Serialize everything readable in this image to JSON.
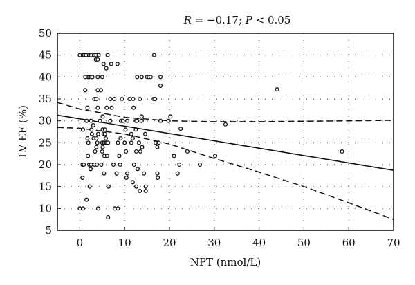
{
  "chart_data": {
    "type": "scatter",
    "title": {
      "r_symbol": "R",
      "r_text": " = −0.17; ",
      "p_symbol": "P",
      "p_text": " < 0.05"
    },
    "xlabel": "NPT (nmol/L)",
    "ylabel": "LV EF (%)",
    "xlim": [
      -5,
      70
    ],
    "ylim": [
      5,
      50
    ],
    "xticks": [
      0,
      10,
      20,
      30,
      40,
      50,
      60,
      70
    ],
    "yticks": [
      5,
      10,
      15,
      20,
      25,
      30,
      35,
      40,
      45,
      50
    ],
    "grid": true,
    "points": [
      [
        0,
        45
      ],
      [
        0.7,
        45
      ],
      [
        1,
        45
      ],
      [
        1.4,
        45
      ],
      [
        2.1,
        45
      ],
      [
        2.5,
        45
      ],
      [
        3.3,
        45
      ],
      [
        3.7,
        45
      ],
      [
        4.2,
        45
      ],
      [
        6.2,
        45
      ],
      [
        16.6,
        45
      ],
      [
        3.6,
        44
      ],
      [
        4,
        44
      ],
      [
        5.3,
        43
      ],
      [
        7,
        43
      ],
      [
        8.4,
        43
      ],
      [
        5.9,
        42
      ],
      [
        1.2,
        40
      ],
      [
        1.8,
        40
      ],
      [
        2.1,
        40
      ],
      [
        2.5,
        40
      ],
      [
        2.8,
        40
      ],
      [
        4,
        40
      ],
      [
        5,
        40
      ],
      [
        12.8,
        40
      ],
      [
        13.8,
        40
      ],
      [
        15,
        40
      ],
      [
        15.4,
        40
      ],
      [
        15.8,
        40
      ],
      [
        18,
        40
      ],
      [
        18,
        38
      ],
      [
        44,
        37.2
      ],
      [
        1.2,
        37
      ],
      [
        4,
        37
      ],
      [
        4.7,
        37
      ],
      [
        3.3,
        35
      ],
      [
        3.7,
        35
      ],
      [
        6.8,
        35
      ],
      [
        7.7,
        35
      ],
      [
        9.4,
        35
      ],
      [
        11.1,
        35
      ],
      [
        11.9,
        35
      ],
      [
        13.4,
        35
      ],
      [
        16.5,
        35
      ],
      [
        16.8,
        35
      ],
      [
        1.7,
        33
      ],
      [
        4,
        33
      ],
      [
        6,
        33
      ],
      [
        7.1,
        33
      ],
      [
        12,
        33
      ],
      [
        5.1,
        31
      ],
      [
        13.8,
        31
      ],
      [
        20.2,
        31
      ],
      [
        1.5,
        30
      ],
      [
        2.5,
        30
      ],
      [
        4.5,
        30
      ],
      [
        6.8,
        30
      ],
      [
        9.2,
        30
      ],
      [
        9.6,
        30
      ],
      [
        10.6,
        30
      ],
      [
        12.5,
        30
      ],
      [
        12.8,
        30
      ],
      [
        13.8,
        30
      ],
      [
        18,
        30
      ],
      [
        19.8,
        30
      ],
      [
        3,
        29
      ],
      [
        32.5,
        29.2
      ],
      [
        0.7,
        28
      ],
      [
        2.6,
        28
      ],
      [
        5.1,
        28
      ],
      [
        5.6,
        28
      ],
      [
        10.2,
        28
      ],
      [
        12.5,
        28
      ],
      [
        22.5,
        28.2
      ],
      [
        2.7,
        27
      ],
      [
        4.1,
        27
      ],
      [
        5.3,
        27
      ],
      [
        5.6,
        27
      ],
      [
        11.5,
        27
      ],
      [
        14.6,
        27
      ],
      [
        1.7,
        26
      ],
      [
        3.1,
        26
      ],
      [
        3.7,
        26
      ],
      [
        5.8,
        26
      ],
      [
        9.1,
        26
      ],
      [
        11.8,
        26
      ],
      [
        1.9,
        25
      ],
      [
        3.9,
        25
      ],
      [
        5,
        25
      ],
      [
        5.3,
        25
      ],
      [
        5.5,
        25
      ],
      [
        5.8,
        25
      ],
      [
        6,
        25
      ],
      [
        6.3,
        25
      ],
      [
        8.5,
        25
      ],
      [
        10,
        25
      ],
      [
        11.5,
        25
      ],
      [
        13.2,
        25
      ],
      [
        16.9,
        25
      ],
      [
        17.6,
        25
      ],
      [
        3.7,
        24
      ],
      [
        5.1,
        24
      ],
      [
        13.9,
        24
      ],
      [
        17.3,
        24
      ],
      [
        3.4,
        23
      ],
      [
        5,
        23
      ],
      [
        10.3,
        23
      ],
      [
        12.6,
        23
      ],
      [
        13.5,
        23
      ],
      [
        24,
        23
      ],
      [
        58.5,
        23
      ],
      [
        1.8,
        22
      ],
      [
        5.5,
        22
      ],
      [
        6.1,
        22
      ],
      [
        8.8,
        22
      ],
      [
        21,
        22
      ],
      [
        30.2,
        22
      ],
      [
        0.6,
        20
      ],
      [
        0.9,
        20
      ],
      [
        2.1,
        20
      ],
      [
        2.5,
        20
      ],
      [
        3.3,
        20
      ],
      [
        3.8,
        20
      ],
      [
        4.8,
        20
      ],
      [
        7.5,
        20
      ],
      [
        9,
        20
      ],
      [
        12.1,
        20
      ],
      [
        22.2,
        20
      ],
      [
        26.8,
        20
      ],
      [
        2.4,
        19
      ],
      [
        12.9,
        19
      ],
      [
        5.4,
        18
      ],
      [
        8.2,
        18
      ],
      [
        10.6,
        18
      ],
      [
        14.3,
        18
      ],
      [
        17.3,
        18
      ],
      [
        21.8,
        18
      ],
      [
        0.6,
        17
      ],
      [
        10.4,
        17
      ],
      [
        17.4,
        17
      ],
      [
        11.8,
        16
      ],
      [
        2.2,
        15
      ],
      [
        6.4,
        15
      ],
      [
        12.6,
        15
      ],
      [
        14.7,
        15
      ],
      [
        13.4,
        14
      ],
      [
        14.7,
        14
      ],
      [
        1.5,
        12
      ],
      [
        0,
        10
      ],
      [
        0.7,
        10
      ],
      [
        4.1,
        10
      ],
      [
        7.8,
        10
      ],
      [
        8.5,
        10
      ],
      [
        6.3,
        8
      ]
    ],
    "regression_line": {
      "x": [
        -5,
        70
      ],
      "y": [
        31.3,
        18.7
      ]
    },
    "ci_upper": {
      "x": [
        -5,
        0,
        10,
        20,
        30,
        40,
        50,
        60,
        70
      ],
      "y": [
        34.2,
        32.7,
        30.8,
        30,
        29.8,
        29.8,
        29.9,
        30,
        30.1
      ]
    },
    "ci_lower": {
      "x": [
        -5,
        0,
        10,
        20,
        30,
        40,
        50,
        60,
        70
      ],
      "y": [
        28.5,
        28.3,
        27,
        24.7,
        21.4,
        18.3,
        15,
        11.3,
        7.5
      ]
    }
  }
}
